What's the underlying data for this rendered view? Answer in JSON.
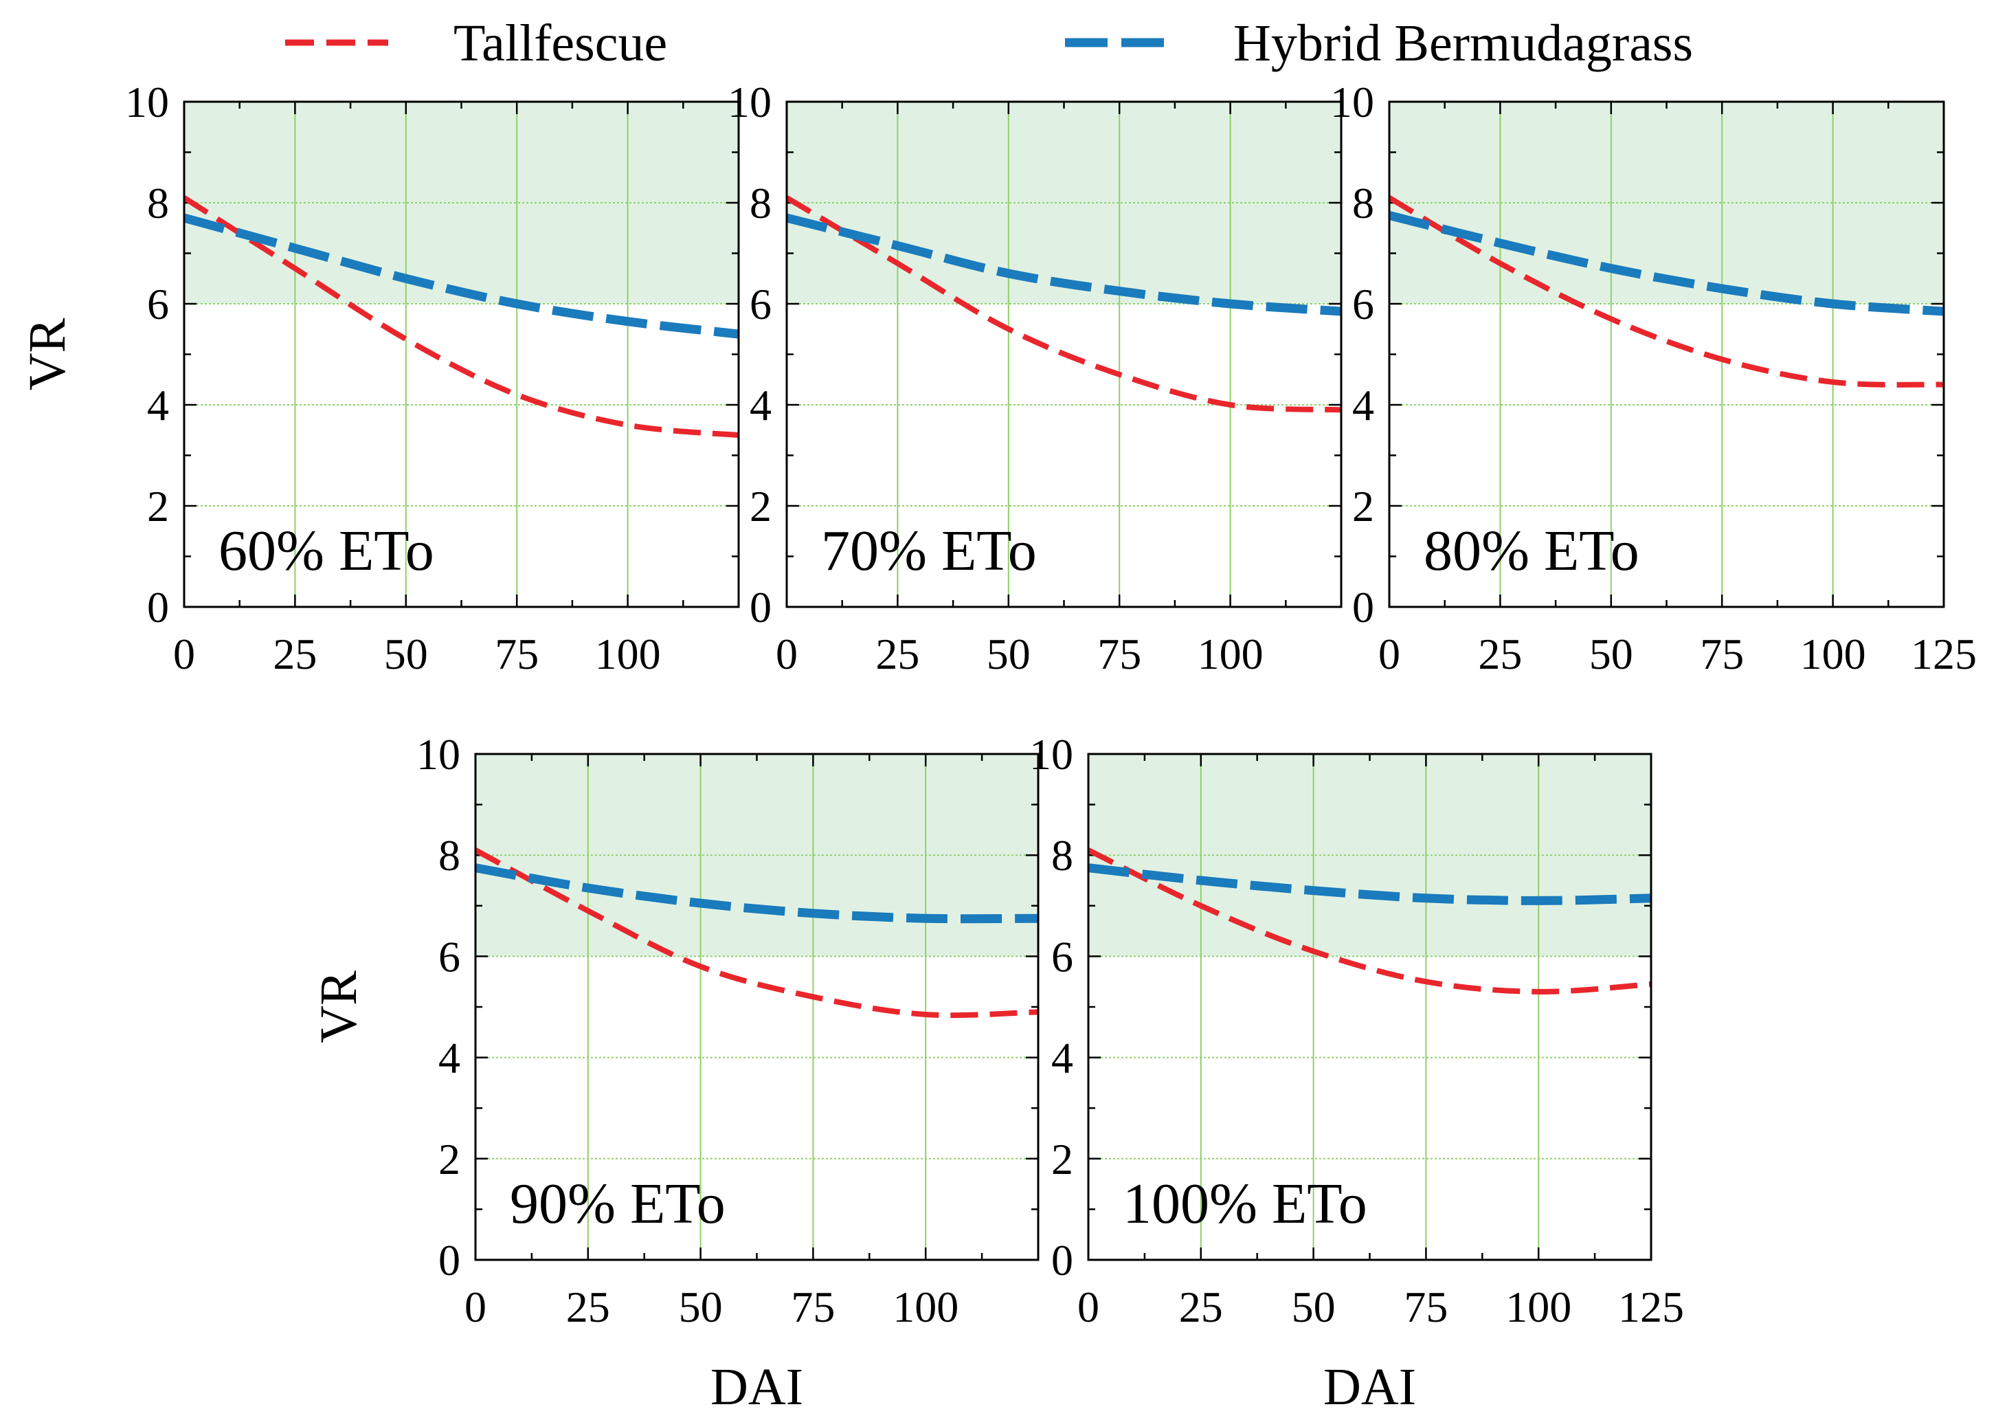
{
  "chart_data": {
    "type": "line",
    "shared": {
      "xlabel": "DAI",
      "ylabel": "VR",
      "xlim": [
        0,
        125
      ],
      "ylim": [
        0,
        10
      ],
      "x_ticks": [
        0,
        25,
        50,
        75,
        100
      ],
      "x_ticks_with_end": [
        0,
        25,
        50,
        75,
        100,
        125
      ],
      "y_ticks": [
        0,
        2,
        4,
        6,
        8,
        10
      ],
      "shaded_region": {
        "y_from": 6,
        "y_to": 10,
        "color": "#e0f1e3"
      },
      "grid": true,
      "grid_color": "#8fd06a"
    },
    "legend": [
      {
        "name": "Tallfescue",
        "color": "#e8262c",
        "style": "dashed"
      },
      {
        "name": "Hybrid Bermudagrass",
        "color": "#1a7bbd",
        "style": "long-dashed"
      }
    ],
    "panels": [
      {
        "label": "60% ETo",
        "series": [
          {
            "name": "Tallfescue",
            "x": [
              0,
              25,
              50,
              75,
              100,
              125
            ],
            "values": [
              8.1,
              6.7,
              5.3,
              4.2,
              3.6,
              3.4
            ]
          },
          {
            "name": "Hybrid Bermudagrass",
            "x": [
              0,
              25,
              50,
              75,
              100,
              125
            ],
            "values": [
              7.7,
              7.1,
              6.5,
              6.0,
              5.65,
              5.4
            ]
          }
        ]
      },
      {
        "label": "70% ETo",
        "series": [
          {
            "name": "Tallfescue",
            "x": [
              0,
              25,
              50,
              75,
              100,
              125
            ],
            "values": [
              8.1,
              6.8,
              5.5,
              4.6,
              4.0,
              3.9
            ]
          },
          {
            "name": "Hybrid Bermudagrass",
            "x": [
              0,
              25,
              50,
              75,
              100,
              125
            ],
            "values": [
              7.7,
              7.15,
              6.6,
              6.25,
              6.0,
              5.85
            ]
          }
        ]
      },
      {
        "label": "80% ETo",
        "series": [
          {
            "name": "Tallfescue",
            "x": [
              0,
              25,
              50,
              75,
              100,
              125
            ],
            "values": [
              8.1,
              6.8,
              5.7,
              4.9,
              4.45,
              4.4
            ]
          },
          {
            "name": "Hybrid Bermudagrass",
            "x": [
              0,
              25,
              50,
              75,
              100,
              125
            ],
            "values": [
              7.75,
              7.2,
              6.7,
              6.3,
              6.0,
              5.85
            ]
          }
        ]
      },
      {
        "label": "90% ETo",
        "series": [
          {
            "name": "Tallfescue",
            "x": [
              0,
              25,
              50,
              75,
              100,
              125
            ],
            "values": [
              8.1,
              6.9,
              5.8,
              5.2,
              4.85,
              4.9
            ]
          },
          {
            "name": "Hybrid Bermudagrass",
            "x": [
              0,
              25,
              50,
              75,
              100,
              125
            ],
            "values": [
              7.75,
              7.35,
              7.05,
              6.85,
              6.75,
              6.75
            ]
          }
        ]
      },
      {
        "label": "100% ETo",
        "series": [
          {
            "name": "Tallfescue",
            "x": [
              0,
              25,
              50,
              75,
              100,
              125
            ],
            "values": [
              8.1,
              7.0,
              6.1,
              5.5,
              5.3,
              5.45
            ]
          },
          {
            "name": "Hybrid Bermudagrass",
            "x": [
              0,
              25,
              50,
              75,
              100,
              125
            ],
            "values": [
              7.75,
              7.5,
              7.3,
              7.15,
              7.1,
              7.15
            ]
          }
        ]
      }
    ]
  }
}
